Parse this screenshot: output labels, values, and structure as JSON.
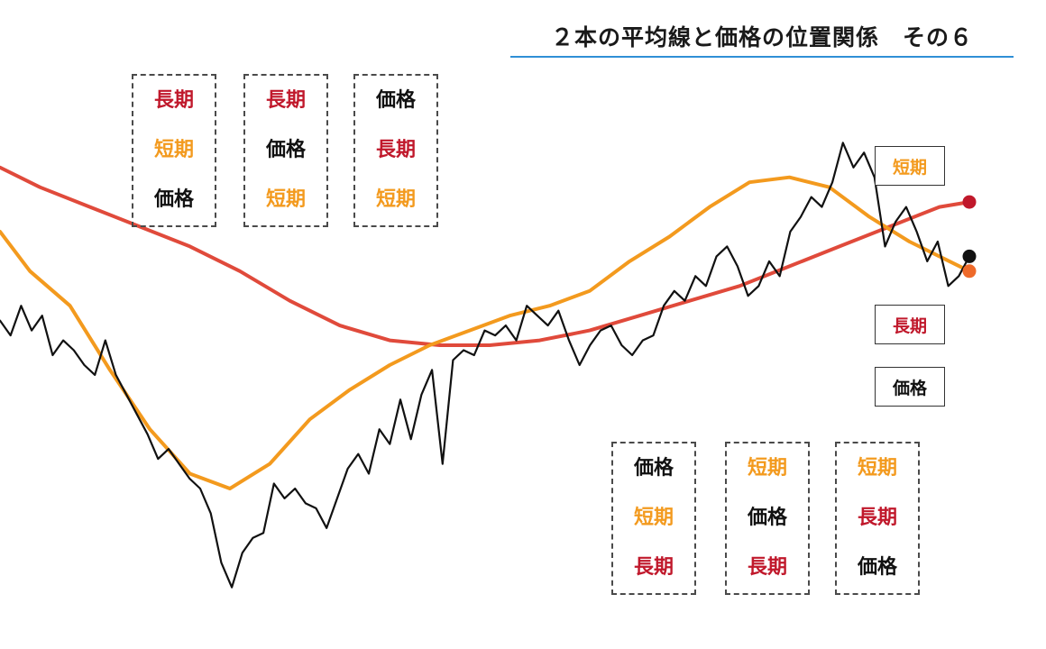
{
  "title": "２本の平均線と価格の位置関係　その６",
  "colors": {
    "long": "#e04a3b",
    "short": "#f39a1e",
    "price": "#111111",
    "rule": "#2f8fd6",
    "long_text": "#c0182b",
    "dot_short": "#ee6a2a",
    "dot_long": "#c0182b",
    "dot_price": "#111111"
  },
  "order_boxes": [
    [
      "長期",
      "短期",
      "価格"
    ],
    [
      "長期",
      "価格",
      "短期"
    ],
    [
      "価格",
      "長期",
      "短期"
    ],
    [
      "価格",
      "短期",
      "長期"
    ],
    [
      "短期",
      "価格",
      "長期"
    ],
    [
      "短期",
      "長期",
      "価格"
    ]
  ],
  "line_labels": {
    "short": "短期",
    "long": "長期",
    "price": "価格"
  },
  "chart_data": {
    "type": "line",
    "title": "２本の平均線と価格の位置関係　その６",
    "xlabel": "",
    "ylabel": "",
    "xlim": [
      0,
      100
    ],
    "ylim": [
      0,
      100
    ],
    "grid": false,
    "series": [
      {
        "key": "price",
        "x": [
          0,
          1,
          2,
          3,
          4,
          5,
          6,
          7,
          8,
          9,
          10,
          11,
          12,
          13,
          14,
          15,
          16,
          17,
          18,
          19,
          20,
          21,
          22,
          23,
          24,
          25,
          26,
          27,
          28,
          29,
          30,
          31,
          32,
          33,
          34,
          35,
          36,
          37,
          38,
          39,
          40,
          41,
          42,
          43,
          44,
          45,
          46,
          47,
          48,
          49,
          50,
          51,
          52,
          53,
          54,
          55,
          56,
          57,
          58,
          59,
          60,
          61,
          62,
          63,
          64,
          65,
          66,
          67,
          68,
          69,
          70,
          71,
          72,
          73,
          74,
          75,
          76,
          77,
          78,
          79,
          80,
          81,
          82,
          83,
          84,
          85,
          86,
          87,
          88,
          89,
          90,
          91,
          92
        ],
        "values": [
          57,
          54,
          60,
          55,
          58,
          50,
          53,
          51,
          48,
          46,
          53,
          46,
          42,
          38,
          34,
          29,
          31,
          28,
          25,
          23,
          18,
          8,
          3,
          10,
          13,
          14,
          24,
          21,
          23,
          20,
          19,
          15,
          21,
          27,
          30,
          26,
          35,
          32,
          41,
          33,
          42,
          47,
          28,
          49,
          51,
          50,
          55,
          54,
          56,
          53,
          60,
          58,
          56,
          59,
          53,
          48,
          52,
          55,
          56,
          52,
          50,
          53,
          54,
          60,
          63,
          61,
          66,
          64,
          70,
          72,
          68,
          62,
          64,
          69,
          66,
          75,
          78,
          82,
          80,
          85,
          93,
          88,
          91,
          86,
          72,
          77,
          80,
          75,
          69,
          73,
          64,
          66,
          70
        ]
      },
      {
        "key": "short",
        "x": [
          0,
          3,
          7,
          11,
          15,
          19,
          23,
          27,
          31,
          35,
          39,
          43,
          47,
          51,
          55,
          59,
          63,
          67,
          71,
          75,
          79,
          83,
          87,
          91,
          94,
          97
        ],
        "values": [
          75,
          67,
          60,
          47,
          35,
          26,
          23,
          28,
          37,
          43,
          48,
          52,
          55,
          58,
          60,
          63,
          69,
          74,
          80,
          85,
          86,
          84,
          78,
          73,
          70,
          67
        ]
      },
      {
        "key": "long",
        "x": [
          0,
          4,
          9,
          14,
          19,
          24,
          29,
          34,
          39,
          44,
          49,
          54,
          59,
          64,
          69,
          74,
          79,
          84,
          89,
          94,
          97
        ],
        "values": [
          88,
          84,
          80,
          76,
          72,
          67,
          61,
          56,
          53,
          52,
          52,
          53,
          55,
          58,
          61,
          64,
          68,
          72,
          76,
          80,
          81
        ]
      }
    ],
    "end_labels": [
      "短期",
      "長期",
      "価格"
    ]
  }
}
